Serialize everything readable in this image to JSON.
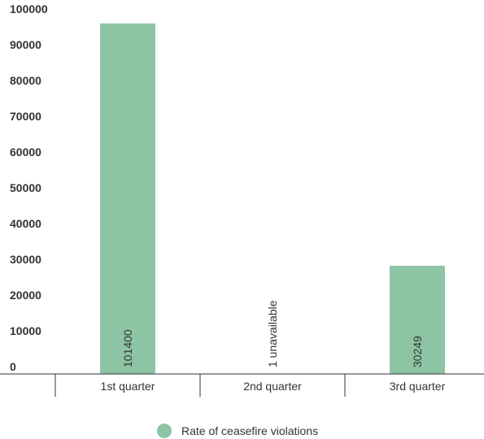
{
  "chart_data": {
    "type": "bar",
    "categories": [
      "1st quarter",
      "2nd quarter",
      "3rd quarter"
    ],
    "series": [
      {
        "name": "Rate of ceasefire violations",
        "values": [
          101400,
          null,
          30249
        ],
        "data_labels": [
          "101400",
          "1 unavailable",
          "30249"
        ]
      }
    ],
    "y_ticks": [
      "0",
      "10000",
      "20000",
      "30000",
      "40000",
      "50000",
      "60000",
      "70000",
      "80000",
      "90000",
      "100000"
    ],
    "ylim": [
      0,
      100000
    ],
    "grid": false,
    "legend": "bottom-center",
    "colors": {
      "bar": "#8dc5a4",
      "axis": "#333333",
      "text": "#333333"
    }
  }
}
